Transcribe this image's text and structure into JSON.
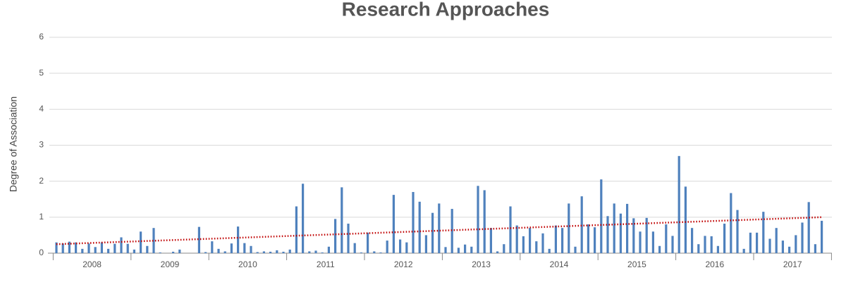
{
  "chart_data": {
    "type": "bar",
    "title": "Research Approaches",
    "y_label": "Degree of Association",
    "year_labels": [
      "2008",
      "2009",
      "2010",
      "2011",
      "2012",
      "2013",
      "2014",
      "2015",
      "2016",
      "2017"
    ],
    "values": [
      0.3,
      0.27,
      0.32,
      0.3,
      0.12,
      0.27,
      0.17,
      0.3,
      0.12,
      0.26,
      0.44,
      0.26,
      0.1,
      0.6,
      0.2,
      0.7,
      0.02,
      0,
      0.04,
      0.1,
      0,
      0,
      0.73,
      0.03,
      0.33,
      0.12,
      0.05,
      0.27,
      0.74,
      0.28,
      0.2,
      0.03,
      0.05,
      0.04,
      0.08,
      0.04,
      0.1,
      1.3,
      1.93,
      0.05,
      0.07,
      0.02,
      0.18,
      0.95,
      1.83,
      0.82,
      0.28,
      0.02,
      0.57,
      0.05,
      0.02,
      0.35,
      1.62,
      0.38,
      0.3,
      1.7,
      1.43,
      0.5,
      1.12,
      1.38,
      0.17,
      1.23,
      0.15,
      0.24,
      0.18,
      1.87,
      1.75,
      0.7,
      0.05,
      0.25,
      1.3,
      0.77,
      0.47,
      0.7,
      0.33,
      0.55,
      0.12,
      0.77,
      0.7,
      1.38,
      0.18,
      1.58,
      0.8,
      0.72,
      2.05,
      1.03,
      1.38,
      1.1,
      1.37,
      0.97,
      0.6,
      0.98,
      0.6,
      0.2,
      0.8,
      0.48,
      2.7,
      1.85,
      0.7,
      0.25,
      0.48,
      0.47,
      0.2,
      0.82,
      1.67,
      1.2,
      0.12,
      0.57,
      0.57,
      1.15,
      0.4,
      0.7,
      0.35,
      0.18,
      0.5,
      0.85,
      1.42,
      0.25,
      0.9
    ],
    "color": "#4f81bd",
    "trendline": {
      "start": 0.25,
      "end": 1.0,
      "color": "#c00000"
    },
    "ylim": [
      0,
      6
    ],
    "yticks": [
      0,
      1,
      2,
      3,
      4,
      5,
      6
    ],
    "grid": true
  }
}
